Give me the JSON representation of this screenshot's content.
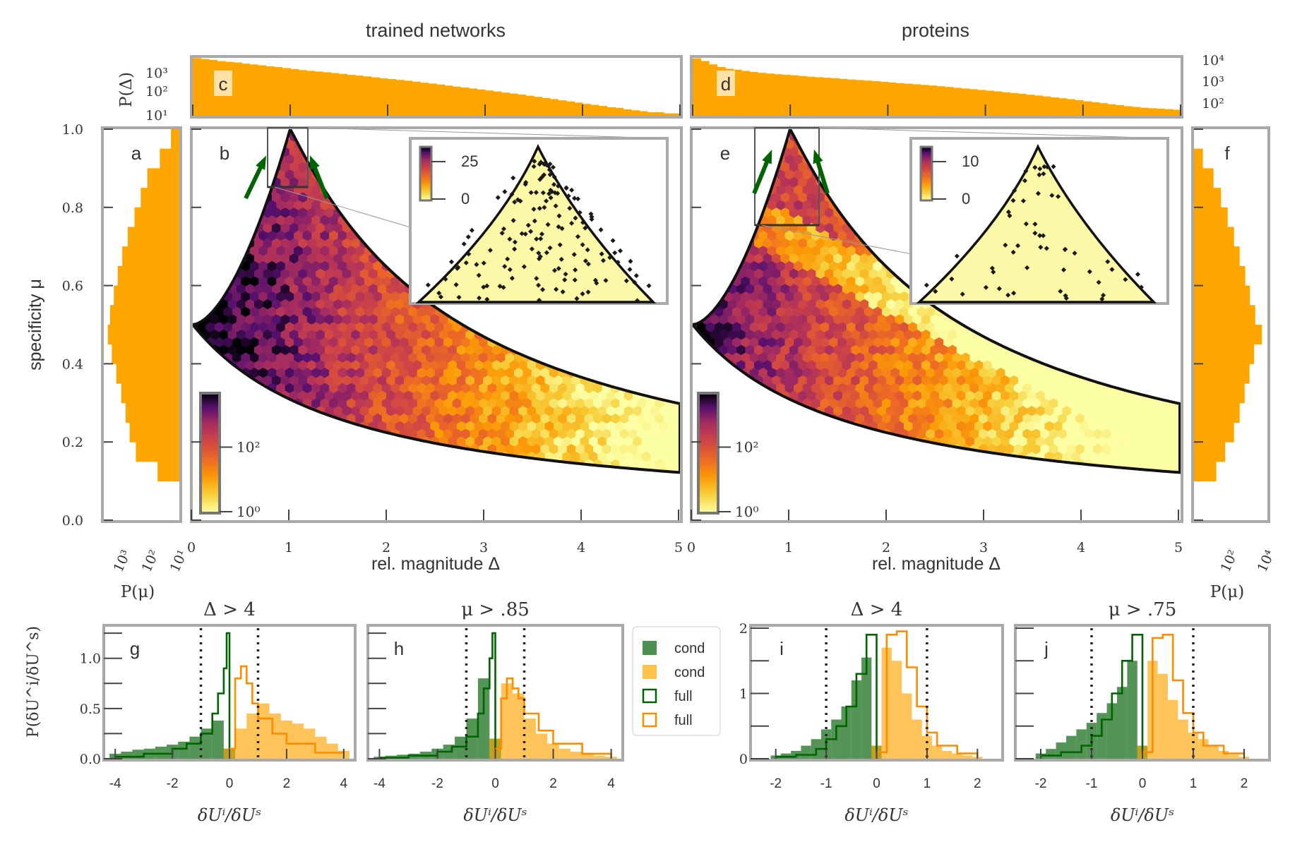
{
  "figure": {
    "column_titles": [
      "trained networks",
      "proteins"
    ],
    "colors": {
      "frame": "#a9a9a9",
      "orange": "#ffa500",
      "green": "#2e7d32",
      "dark_green": "#006400",
      "light_orange": "#ffb347",
      "line_orange": "#ff8c00",
      "boundary": "#111111"
    }
  },
  "chart_data": [
    {
      "id": "c",
      "type": "bar",
      "panel_label": "c",
      "title": "trained networks",
      "ylabel": "P(Δ)",
      "yscale": "log",
      "ytick_labels": [
        "10^1",
        "10^2",
        "10^3"
      ],
      "x_range": [
        0,
        5
      ],
      "description_values": "histogram of Δ decreasing from ~2000 at Δ≈0 to ~10 at Δ≈5",
      "values": [
        2200,
        2000,
        1800,
        1600,
        1500,
        1400,
        1250,
        1150,
        1050,
        950,
        880,
        800,
        720,
        650,
        600,
        560,
        520,
        480,
        440,
        400,
        370,
        340,
        310,
        280,
        260,
        240,
        220,
        200,
        180,
        165,
        150,
        135,
        120,
        110,
        100,
        90,
        82,
        74,
        66,
        60,
        54,
        48,
        43,
        38,
        34,
        30,
        27,
        24,
        21,
        19,
        17,
        15,
        14,
        12,
        11,
        10,
        9,
        9,
        8,
        8
      ]
    },
    {
      "id": "d",
      "type": "bar",
      "panel_label": "d",
      "title": "proteins",
      "ylabel": "P(Δ)",
      "yscale": "log",
      "ytick_labels": [
        "10^2",
        "10^3",
        "10^4"
      ],
      "x_range": [
        0,
        5
      ],
      "values": [
        30000,
        22000,
        15000,
        11000,
        9000,
        8000,
        7000,
        6200,
        5600,
        5200,
        4800,
        4500,
        4200,
        3900,
        3600,
        3400,
        3200,
        3000,
        2800,
        2600,
        2450,
        2300,
        2150,
        2000,
        1850,
        1700,
        1600,
        1500,
        1400,
        1300,
        1200,
        1100,
        1000,
        920,
        850,
        780,
        720,
        660,
        600,
        550,
        500,
        450,
        410,
        370,
        330,
        300,
        270,
        240,
        210,
        190,
        170,
        150,
        135,
        120,
        110,
        100,
        95,
        90,
        85,
        80
      ]
    },
    {
      "id": "a",
      "type": "bar",
      "orientation": "horizontal",
      "panel_label": "a",
      "xlabel": "P(μ)",
      "xscale": "log",
      "xtick_labels": [
        "10^3",
        "10^2",
        "10^1"
      ],
      "ylabel": "specificity μ",
      "ylim": [
        0,
        1
      ],
      "ytick_labels": [
        "0.0",
        "0.2",
        "0.4",
        "0.6",
        "0.8",
        "1.0"
      ],
      "mu_bins": [
        0.15,
        0.2,
        0.25,
        0.3,
        0.35,
        0.4,
        0.45,
        0.5,
        0.55,
        0.6,
        0.65,
        0.7,
        0.75,
        0.8,
        0.85,
        0.9,
        0.95,
        1.0
      ],
      "values": [
        30,
        180,
        300,
        420,
        600,
        900,
        1300,
        1800,
        1500,
        1100,
        800,
        550,
        350,
        200,
        120,
        70,
        25,
        10
      ]
    },
    {
      "id": "f",
      "type": "bar",
      "orientation": "horizontal",
      "panel_label": "f",
      "xlabel": "P(μ)",
      "xscale": "log",
      "xtick_labels": [
        "10^2",
        "10^4"
      ],
      "ylim": [
        0,
        1
      ],
      "mu_bins": [
        0.15,
        0.2,
        0.25,
        0.3,
        0.35,
        0.4,
        0.45,
        0.5,
        0.55,
        0.6,
        0.65,
        0.7,
        0.75,
        0.8,
        0.85,
        0.9,
        0.95
      ],
      "values": [
        80,
        200,
        500,
        900,
        1500,
        2500,
        4000,
        9000,
        4500,
        2600,
        1600,
        900,
        500,
        260,
        130,
        60,
        20
      ]
    },
    {
      "id": "b",
      "type": "heatmap",
      "subtype": "hexbin",
      "panel_label": "b",
      "title": "trained networks",
      "xlabel": "rel. magnitude Δ",
      "ylabel": "specificity μ",
      "xlim": [
        0,
        5
      ],
      "ylim": [
        0,
        1
      ],
      "xtick_labels": [
        "0",
        "1",
        "2",
        "3",
        "4",
        "5"
      ],
      "colorbar": {
        "scale": "log",
        "tick_labels": [
          "10^0",
          "10^2"
        ],
        "colormap": "inferno_r"
      },
      "boundary": "μ = 1/(1+Δ) and μ = Δ/(1+Δ) envelope, meeting at μ=1, Δ=1",
      "zoom_box": {
        "x_range": [
          0.8,
          1.2
        ],
        "y_range": [
          0.85,
          1.0
        ]
      },
      "inset": {
        "colorbar_tick_labels": [
          "0",
          "25"
        ]
      }
    },
    {
      "id": "e",
      "type": "heatmap",
      "subtype": "hexbin",
      "panel_label": "e",
      "title": "proteins",
      "xlabel": "rel. magnitude Δ",
      "xlim": [
        0,
        5
      ],
      "ylim": [
        0,
        1
      ],
      "xtick_labels": [
        "0",
        "1",
        "2",
        "3",
        "4",
        "5"
      ],
      "colorbar": {
        "scale": "log",
        "tick_labels": [
          "10^0",
          "10^2"
        ],
        "colormap": "inferno_r"
      },
      "zoom_box": {
        "x_range": [
          0.7,
          1.35
        ],
        "y_range": [
          0.75,
          1.0
        ]
      },
      "inset": {
        "colorbar_tick_labels": [
          "0",
          "10"
        ]
      }
    },
    {
      "id": "g",
      "type": "bar",
      "subtype": "histogram",
      "panel_label": "g",
      "title": "Δ > 4",
      "xlabel": "δU^i/δU^s",
      "ylabel": "P(δU^i/δU^s)",
      "xlim": [
        -4.4,
        4.4
      ],
      "ylim": [
        0,
        1.3
      ],
      "xtick_labels": [
        "-4",
        "-2",
        "0",
        "2",
        "4"
      ],
      "ytick_labels": [
        "0.0",
        "0.5",
        "1.0"
      ],
      "dotted_lines": [
        -1,
        1
      ],
      "series": [
        {
          "name": "cond",
          "color": "green",
          "style": "filled",
          "x": [
            -4,
            -3.6,
            -3.2,
            -2.8,
            -2.4,
            -2.0,
            -1.6,
            -1.2,
            -0.8,
            -0.4,
            0.0
          ],
          "values": [
            0.05,
            0.07,
            0.09,
            0.1,
            0.12,
            0.14,
            0.17,
            0.22,
            0.3,
            0.38,
            0.1
          ]
        },
        {
          "name": "cond",
          "color": "orange",
          "style": "filled",
          "x": [
            0.0,
            0.4,
            0.8,
            1.2,
            1.6,
            2.0,
            2.4,
            2.8,
            3.2,
            3.6,
            4.0
          ],
          "values": [
            0.1,
            0.3,
            0.45,
            0.55,
            0.45,
            0.38,
            0.35,
            0.3,
            0.22,
            0.15,
            0.08
          ]
        },
        {
          "name": "full",
          "color": "green",
          "style": "step",
          "x": [
            -4,
            -3,
            -2,
            -1.5,
            -1,
            -0.6,
            -0.4,
            -0.2,
            -0.1,
            0.0
          ],
          "values": [
            0.02,
            0.05,
            0.1,
            0.15,
            0.25,
            0.45,
            0.65,
            0.9,
            1.25,
            0.1
          ]
        },
        {
          "name": "full",
          "color": "orange",
          "style": "step",
          "x": [
            0.0,
            0.2,
            0.4,
            0.6,
            0.8,
            1.0,
            1.5,
            2.0,
            3.0,
            4.0
          ],
          "values": [
            0.1,
            0.8,
            0.92,
            0.75,
            0.55,
            0.4,
            0.25,
            0.15,
            0.06,
            0.02
          ]
        }
      ]
    },
    {
      "id": "h",
      "type": "bar",
      "subtype": "histogram",
      "panel_label": "h",
      "title": "μ > .85",
      "xlabel": "δU^i/δU^s",
      "xlim": [
        -4.4,
        4.4
      ],
      "ylim": [
        0,
        1.3
      ],
      "xtick_labels": [
        "-4",
        "-2",
        "0",
        "2",
        "4"
      ],
      "dotted_lines": [
        -1,
        1
      ],
      "series": [
        {
          "name": "cond",
          "color": "green",
          "style": "filled",
          "x": [
            -4,
            -3.6,
            -3.2,
            -2.8,
            -2.4,
            -2.0,
            -1.6,
            -1.2,
            -0.8,
            -0.4,
            0.0
          ],
          "values": [
            0.02,
            0.03,
            0.04,
            0.05,
            0.07,
            0.1,
            0.14,
            0.22,
            0.4,
            0.8,
            0.2
          ]
        },
        {
          "name": "cond",
          "color": "orange",
          "style": "filled",
          "x": [
            0.0,
            0.4,
            0.8,
            1.2,
            1.6,
            2.0,
            2.4,
            2.8,
            3.2,
            3.6,
            4.0
          ],
          "values": [
            0.2,
            0.75,
            0.65,
            0.4,
            0.25,
            0.15,
            0.1,
            0.07,
            0.05,
            0.03,
            0.02
          ]
        },
        {
          "name": "full",
          "color": "green",
          "style": "step",
          "x": [
            -4,
            -3,
            -2,
            -1.5,
            -1,
            -0.6,
            -0.4,
            -0.2,
            -0.1,
            0.0
          ],
          "values": [
            0.01,
            0.03,
            0.07,
            0.12,
            0.22,
            0.45,
            0.7,
            1.0,
            1.25,
            0.1
          ]
        },
        {
          "name": "full",
          "color": "orange",
          "style": "step",
          "x": [
            0.0,
            0.2,
            0.4,
            0.6,
            0.8,
            1.0,
            1.5,
            2.0,
            3.0,
            4.0
          ],
          "values": [
            0.1,
            0.6,
            0.8,
            0.7,
            0.6,
            0.45,
            0.28,
            0.15,
            0.05,
            0.02
          ]
        }
      ]
    },
    {
      "id": "i",
      "type": "bar",
      "subtype": "histogram",
      "panel_label": "i",
      "title": "Δ > 4",
      "xlabel": "δU^i/δU^s",
      "xlim": [
        -2.5,
        2.5
      ],
      "ylim": [
        0,
        2
      ],
      "xtick_labels": [
        "-2",
        "-1",
        "0",
        "1",
        "2"
      ],
      "ytick_labels": [
        "0",
        "1",
        "2"
      ],
      "dotted_lines": [
        -1,
        1
      ],
      "series": [
        {
          "name": "cond",
          "color": "green",
          "style": "filled",
          "x": [
            -2.0,
            -1.8,
            -1.6,
            -1.4,
            -1.2,
            -1.0,
            -0.8,
            -0.6,
            -0.4,
            -0.2,
            0.0
          ],
          "values": [
            0.05,
            0.08,
            0.12,
            0.2,
            0.3,
            0.45,
            0.6,
            0.8,
            1.2,
            1.55,
            0.2
          ]
        },
        {
          "name": "cond",
          "color": "orange",
          "style": "filled",
          "x": [
            0.0,
            0.2,
            0.4,
            0.6,
            0.8,
            1.0,
            1.2,
            1.4,
            1.6,
            1.8,
            2.0
          ],
          "values": [
            0.2,
            1.7,
            1.5,
            1.0,
            0.6,
            0.35,
            0.2,
            0.12,
            0.08,
            0.05,
            0.03
          ]
        },
        {
          "name": "full",
          "color": "green",
          "style": "step",
          "x": [
            -2.0,
            -1.6,
            -1.2,
            -1.0,
            -0.8,
            -0.6,
            -0.4,
            -0.2,
            0.0
          ],
          "values": [
            0.03,
            0.06,
            0.15,
            0.3,
            0.5,
            0.8,
            1.3,
            1.9,
            0.1
          ]
        },
        {
          "name": "full",
          "color": "orange",
          "style": "step",
          "x": [
            0.0,
            0.2,
            0.4,
            0.6,
            0.8,
            1.0,
            1.2,
            1.6,
            2.0
          ],
          "values": [
            0.1,
            1.9,
            1.95,
            1.4,
            0.8,
            0.4,
            0.2,
            0.08,
            0.03
          ]
        }
      ]
    },
    {
      "id": "j",
      "type": "bar",
      "subtype": "histogram",
      "panel_label": "j",
      "title": "μ > .75",
      "xlabel": "δU^i/δU^s",
      "xlim": [
        -2.5,
        2.5
      ],
      "ylim": [
        0,
        2
      ],
      "xtick_labels": [
        "-2",
        "-1",
        "0",
        "1",
        "2"
      ],
      "dotted_lines": [
        -1,
        1
      ],
      "series": [
        {
          "name": "cond",
          "color": "green",
          "style": "filled",
          "x": [
            -2.0,
            -1.8,
            -1.6,
            -1.4,
            -1.2,
            -1.0,
            -0.8,
            -0.6,
            -0.4,
            -0.2,
            0.0
          ],
          "values": [
            0.08,
            0.15,
            0.25,
            0.35,
            0.45,
            0.55,
            0.7,
            0.85,
            1.1,
            1.5,
            0.2
          ]
        },
        {
          "name": "cond",
          "color": "orange",
          "style": "filled",
          "x": [
            0.0,
            0.2,
            0.4,
            0.6,
            0.8,
            1.0,
            1.2,
            1.4,
            1.6,
            1.8,
            2.0
          ],
          "values": [
            0.2,
            1.5,
            1.3,
            0.9,
            0.6,
            0.4,
            0.3,
            0.2,
            0.12,
            0.06,
            0.03
          ]
        },
        {
          "name": "full",
          "color": "green",
          "style": "step",
          "x": [
            -2.0,
            -1.6,
            -1.2,
            -1.0,
            -0.8,
            -0.6,
            -0.4,
            -0.2,
            0.0
          ],
          "values": [
            0.05,
            0.1,
            0.2,
            0.35,
            0.6,
            1.0,
            1.5,
            1.9,
            0.1
          ]
        },
        {
          "name": "full",
          "color": "orange",
          "style": "step",
          "x": [
            0.0,
            0.2,
            0.4,
            0.6,
            0.8,
            1.0,
            1.2,
            1.6,
            2.0
          ],
          "values": [
            0.1,
            1.85,
            1.9,
            1.2,
            0.7,
            0.4,
            0.2,
            0.08,
            0.03
          ]
        }
      ]
    }
  ],
  "legend": {
    "entries": [
      {
        "label": "cond",
        "color": "green",
        "style": "filled"
      },
      {
        "label": "cond",
        "color": "orange",
        "style": "filled"
      },
      {
        "label": "full",
        "color": "green",
        "style": "outline"
      },
      {
        "label": "full",
        "color": "orange",
        "style": "outline"
      }
    ]
  },
  "axis_text": {
    "specificity_label": "specificity μ",
    "rel_magnitude_label": "rel. magnitude Δ",
    "p_mu_label": "P(μ)",
    "p_delta_label": "P(Δ)",
    "ratio_label": "δU^i/δU^s",
    "ratio_ylabel": "P(δU^i/δU^s)"
  }
}
